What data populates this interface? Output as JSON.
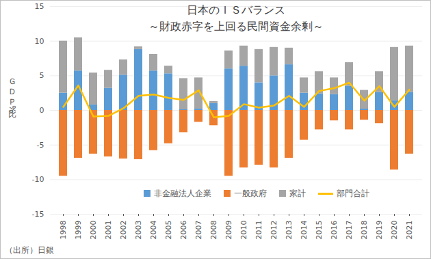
{
  "chart_data": {
    "type": "bar",
    "title": "日本のＩＳバランス",
    "subtitle": "～財政赤字を上回る民間資金余剰～",
    "y_label": "ＧＤＰ比%",
    "source": "（出所）日銀",
    "categories": [
      "1998",
      "1999",
      "2000",
      "2001",
      "2002",
      "2003",
      "2004",
      "2005",
      "2006",
      "2007",
      "2008",
      "2009",
      "2010",
      "2011",
      "2012",
      "2013",
      "2014",
      "2015",
      "2016",
      "2017",
      "2018",
      "2019",
      "2020",
      "2021"
    ],
    "series": [
      {
        "name": "非金融法人企業",
        "color": "#5B9BD5",
        "type": "bar",
        "values": [
          2.5,
          5.7,
          0.8,
          3.2,
          5.1,
          8.8,
          5.7,
          5.3,
          0.1,
          0.2,
          1.0,
          6.0,
          6.4,
          4.0,
          5.0,
          6.6,
          2.5,
          2.4,
          2.3,
          3.5,
          0.2,
          2.6,
          1.4,
          2.6
        ]
      },
      {
        "name": "一般政府",
        "color": "#ED7D31",
        "type": "bar",
        "values": [
          -9.5,
          -6.9,
          -6.3,
          -6.7,
          -7.0,
          -7.1,
          -5.8,
          -4.8,
          -3.2,
          -1.7,
          -2.2,
          -9.5,
          -8.3,
          -7.9,
          -8.3,
          -6.9,
          -4.3,
          -2.8,
          -1.5,
          -2.8,
          -1.4,
          -1.9,
          -8.6,
          -6.3
        ]
      },
      {
        "name": "家計",
        "color": "#A5A5A5",
        "type": "bar",
        "values": [
          7.5,
          4.8,
          4.6,
          2.6,
          2.2,
          0.4,
          2.4,
          1.1,
          4.5,
          4.5,
          0.3,
          2.6,
          2.9,
          4.8,
          4.1,
          2.4,
          2.2,
          3.2,
          2.4,
          3.4,
          2.7,
          3.0,
          7.7,
          6.7
        ]
      },
      {
        "name": "部門合計",
        "color": "#FFC000",
        "type": "line",
        "values": [
          0.5,
          3.6,
          -0.9,
          -0.8,
          0.3,
          2.1,
          2.3,
          1.8,
          1.5,
          2.9,
          -1.0,
          -0.8,
          0.9,
          0.4,
          0.7,
          2.1,
          0.5,
          2.8,
          3.2,
          4.0,
          1.4,
          3.5,
          0.5,
          3.0
        ]
      }
    ],
    "stacked": true,
    "ylim": [
      -15,
      15
    ],
    "yticks": [
      -15,
      -10,
      -5,
      0,
      5,
      10,
      15
    ],
    "grid": true,
    "legend": "bottom"
  }
}
